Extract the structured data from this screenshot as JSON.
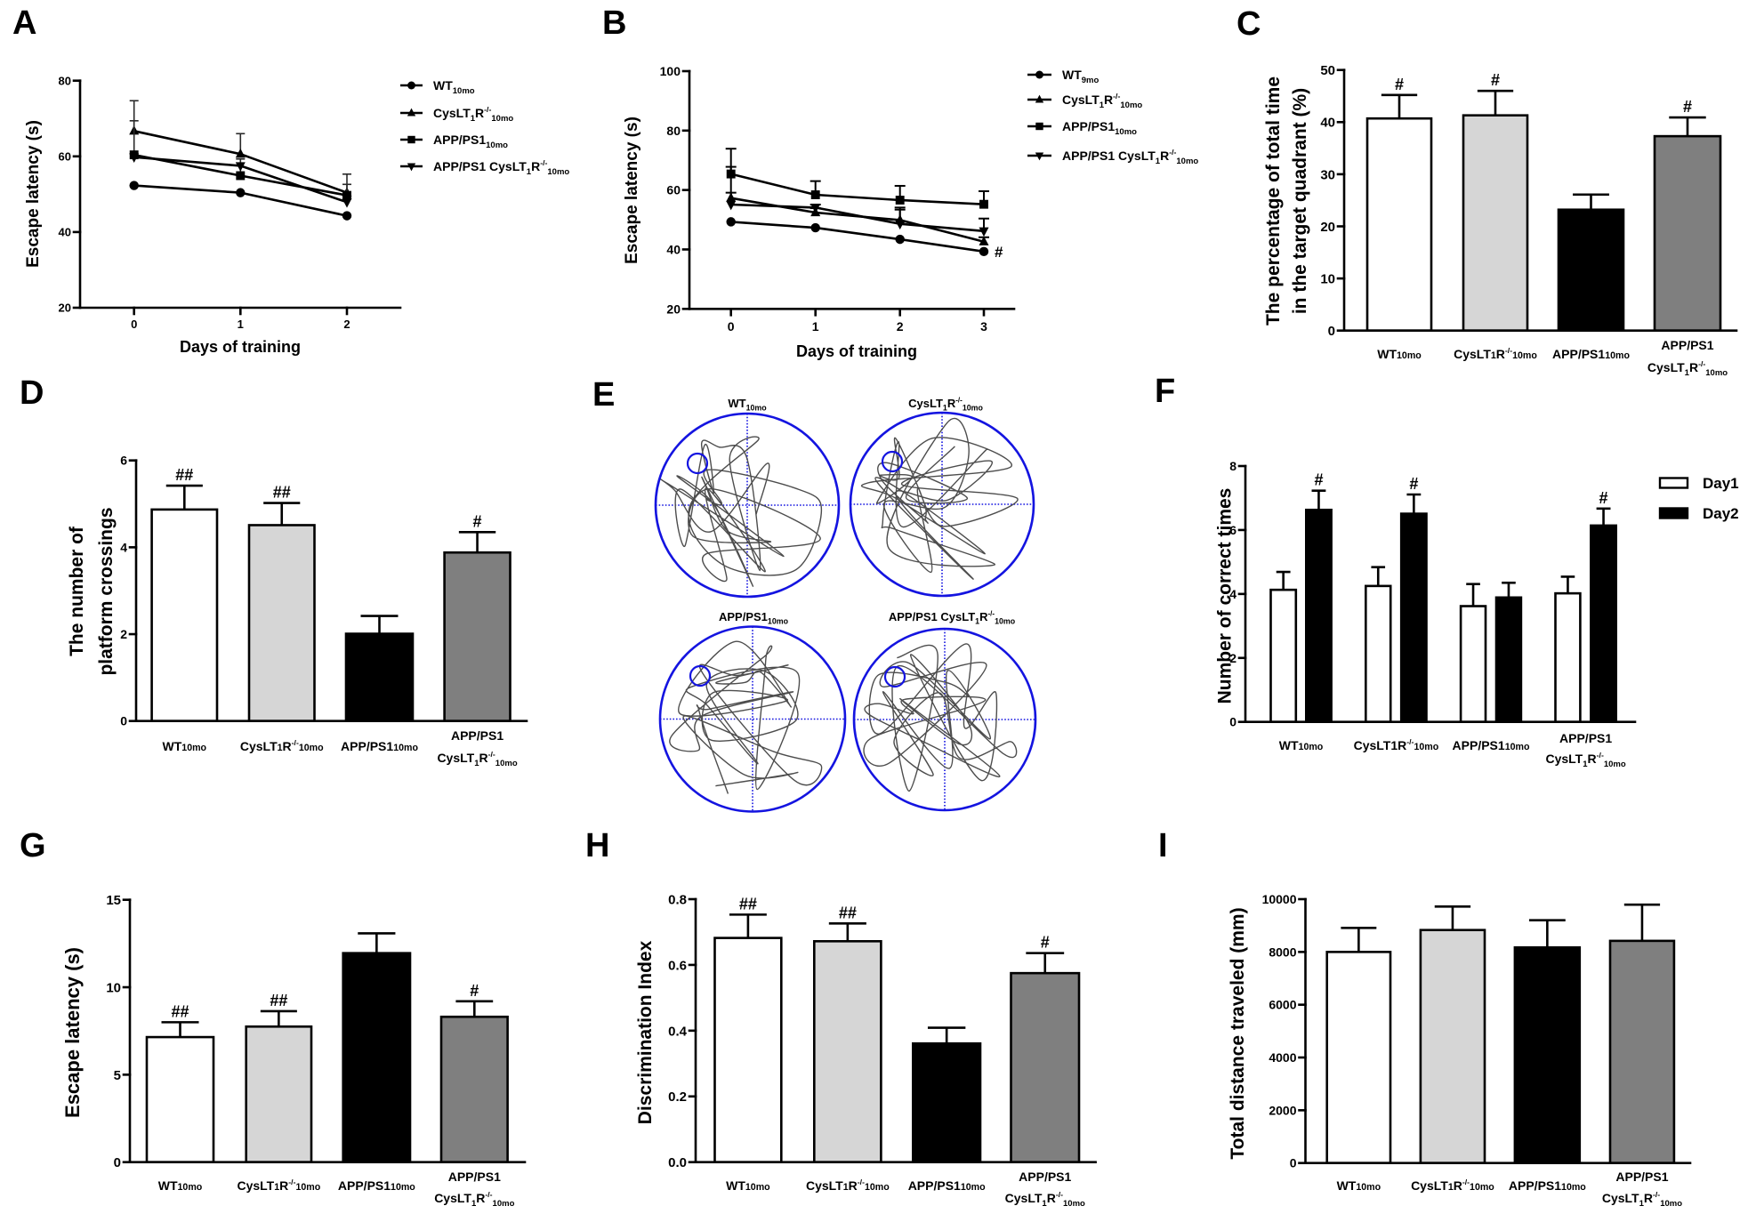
{
  "figure": {
    "panel_labels": [
      "A",
      "B",
      "C",
      "D",
      "E",
      "F",
      "G",
      "H",
      "I"
    ]
  },
  "styles": {
    "ink": "#000000",
    "bar_colors": [
      "#ffffff",
      "#d6d6d6",
      "#000000",
      "#7f7f7f"
    ],
    "pool_color": "#1414e0",
    "path_color": "#4d4d4d"
  },
  "rich_labels": {
    "leg_wt10": [
      [
        {
          "t": "WT"
        },
        {
          "t": "10mo",
          "f": "sub"
        }
      ]
    ],
    "leg_wt9": [
      [
        {
          "t": "WT"
        },
        {
          "t": "9mo",
          "f": "sub"
        }
      ]
    ],
    "leg_cys": [
      [
        {
          "t": "CysLT"
        },
        {
          "t": "1",
          "f": "sub"
        },
        {
          "t": "R"
        },
        {
          "t": "-/-",
          "f": "sup"
        },
        {
          "t": "10mo",
          "f": "sub"
        }
      ]
    ],
    "leg_app": [
      [
        {
          "t": "APP/PS1"
        },
        {
          "t": "10mo",
          "f": "sub"
        }
      ]
    ],
    "leg_appcys": [
      [
        {
          "t": "APP/PS1 CysLT"
        },
        {
          "t": "1",
          "f": "sub"
        },
        {
          "t": "R"
        },
        {
          "t": "-/-",
          "f": "sup"
        },
        {
          "t": "10mo",
          "f": "sub"
        }
      ]
    ],
    "bar_wt": [
      [
        {
          "t": "WT"
        },
        {
          "t": "10mo",
          "f": "sm"
        }
      ]
    ],
    "bar_cys": [
      [
        {
          "t": "CysLT"
        },
        {
          "t": "1",
          "f": "sm"
        },
        {
          "t": "R"
        },
        {
          "t": "-/-",
          "f": "sup"
        },
        {
          "t": "10mo",
          "f": "sm"
        }
      ]
    ],
    "bar_cys_f": [
      [
        {
          "t": "CysLT1R"
        },
        {
          "t": "-/-",
          "f": "sup"
        },
        {
          "t": "10mo",
          "f": "sm"
        }
      ]
    ],
    "bar_app": [
      [
        {
          "t": "APP/PS1"
        },
        {
          "t": "10mo",
          "f": "sm"
        }
      ]
    ],
    "bar_appcys": [
      [
        {
          "t": "APP/PS1"
        }
      ],
      [
        {
          "t": "CysLT"
        },
        {
          "t": "1",
          "f": "sub"
        },
        {
          "t": "R"
        },
        {
          "t": "-/-",
          "f": "sup"
        },
        {
          "t": "10mo",
          "f": "sub"
        }
      ]
    ]
  },
  "chart_data": [
    {
      "panel": "A",
      "type": "line",
      "title": "",
      "xlabel": "Days of training",
      "ylabel": "Escape latency (s)",
      "x": [
        0,
        1,
        2
      ],
      "xtick_labels": [
        "0",
        "1",
        "2"
      ],
      "ylim": [
        20,
        80
      ],
      "yticks": [
        20,
        40,
        60,
        80
      ],
      "ytick_labels": [
        "20",
        "40",
        "60",
        "80"
      ],
      "legend": "right",
      "error": "SEM",
      "series": [
        {
          "name": "WT10mo",
          "legend_key": "leg_wt10",
          "marker": "circle",
          "values": [
            52.3,
            50.4,
            44.3
          ],
          "sem": [
            0,
            0,
            0
          ]
        },
        {
          "name": "CysLT1R-/-10mo",
          "legend_key": "leg_cys",
          "marker": "triangle-up",
          "values": [
            66.7,
            60.6,
            50.4
          ],
          "sem": [
            8.0,
            5.4,
            4.9
          ]
        },
        {
          "name": "APP/PS110mo",
          "legend_key": "leg_app",
          "marker": "square",
          "values": [
            60.4,
            54.9,
            49.7
          ],
          "sem": [
            9.0,
            4.4,
            2.9
          ]
        },
        {
          "name": "APP/PS1 CysLT1R-/-10mo",
          "legend_key": "leg_appcys",
          "marker": "triangle-down",
          "values": [
            59.8,
            57.5,
            47.9
          ],
          "sem": [
            0,
            0,
            0
          ]
        }
      ],
      "annotations": []
    },
    {
      "panel": "B",
      "type": "line",
      "title": "",
      "xlabel": "Days of training",
      "ylabel": "Escape latency (s)",
      "x": [
        0,
        1,
        2,
        3
      ],
      "xtick_labels": [
        "0",
        "1",
        "2",
        "3"
      ],
      "ylim": [
        20,
        100
      ],
      "yticks": [
        20,
        40,
        60,
        80,
        100
      ],
      "ytick_labels": [
        "20",
        "40",
        "60",
        "80",
        "100"
      ],
      "legend": "right",
      "error": "SEM",
      "series": [
        {
          "name": "WT9mo",
          "legend_key": "leg_wt9",
          "marker": "circle",
          "values": [
            49.3,
            47.3,
            43.4,
            39.3
          ],
          "sem": [
            0,
            0,
            0,
            0
          ]
        },
        {
          "name": "CysLT1R-/-10mo",
          "legend_key": "leg_cys",
          "marker": "triangle-up",
          "values": [
            57.3,
            52.4,
            49.9,
            42.6
          ],
          "sem": [
            10.5,
            1.5,
            3.5,
            1.5
          ]
        },
        {
          "name": "APP/PS110mo",
          "legend_key": "leg_app",
          "marker": "square",
          "values": [
            65.4,
            58.4,
            56.6,
            55.2
          ],
          "sem": [
            8.5,
            4.6,
            4.8,
            4.4
          ]
        },
        {
          "name": "APP/PS1 CysLT1R-/-10mo",
          "legend_key": "leg_appcys",
          "marker": "triangle-down",
          "values": [
            55.1,
            54.1,
            48.6,
            46.2
          ],
          "sem": [
            4.0,
            1.0,
            5.5,
            4.2
          ]
        }
      ],
      "annotations": [
        {
          "series_index": 0,
          "x_index": 3,
          "text": "#"
        }
      ]
    },
    {
      "panel": "C",
      "type": "bar",
      "title": "",
      "xlabel": "",
      "ylabel": [
        "The percentage of total time",
        "in the target quadrant (%)"
      ],
      "categories": [
        "WT10mo",
        "CysLT1R-/-10mo",
        "APP/PS110mo",
        "APP/PS1 CysLT1R-/-10mo"
      ],
      "category_label_keys": [
        "bar_wt",
        "bar_cys",
        "bar_app",
        "bar_appcys"
      ],
      "values": [
        40.7,
        41.3,
        23.2,
        37.3
      ],
      "sem": [
        4.5,
        4.7,
        2.9,
        3.6
      ],
      "significance": [
        "#",
        "#",
        "",
        "#"
      ],
      "ylim": [
        0,
        50
      ],
      "yticks": [
        0,
        10,
        20,
        30,
        40,
        50
      ],
      "ytick_labels": [
        "0",
        "10",
        "20",
        "30",
        "40",
        "50"
      ]
    },
    {
      "panel": "D",
      "type": "bar",
      "title": "",
      "xlabel": "",
      "ylabel": [
        "The number of",
        "platform crossings"
      ],
      "categories": [
        "WT10mo",
        "CysLT1R-/-10mo",
        "APP/PS110mo",
        "APP/PS1 CysLT1R-/-10mo"
      ],
      "category_label_keys": [
        "bar_wt",
        "bar_cys",
        "bar_app",
        "bar_appcys"
      ],
      "values": [
        4.87,
        4.51,
        2.01,
        3.88
      ],
      "sem": [
        0.55,
        0.51,
        0.41,
        0.47
      ],
      "significance": [
        "##",
        "##",
        "",
        "#"
      ],
      "ylim": [
        0,
        6
      ],
      "yticks": [
        0,
        2,
        4,
        6
      ],
      "ytick_labels": [
        "0",
        "2",
        "4",
        "6"
      ]
    },
    {
      "panel": "F",
      "type": "bar",
      "title": "",
      "xlabel": "",
      "ylabel": "Number of correct times",
      "categories": [
        "WT10mo",
        "CysLT1R-/-10mo",
        "APP/PS110mo",
        "APP/PS1 CysLT1R-/-10mo"
      ],
      "category_label_keys": [
        "bar_wt",
        "bar_cys_f",
        "bar_app",
        "bar_appcys"
      ],
      "series": [
        {
          "name": "Day1",
          "color": "#ffffff",
          "values": [
            4.13,
            4.25,
            3.62,
            4.02
          ],
          "sem": [
            0.56,
            0.59,
            0.69,
            0.52
          ],
          "significance": [
            "",
            "",
            "",
            ""
          ]
        },
        {
          "name": "Day2",
          "color": "#000000",
          "values": [
            6.63,
            6.51,
            3.89,
            6.14
          ],
          "sem": [
            0.6,
            0.6,
            0.46,
            0.53
          ],
          "significance": [
            "#",
            "#",
            "",
            "#"
          ]
        }
      ],
      "ylim": [
        0,
        8
      ],
      "yticks": [
        0,
        2,
        4,
        6,
        8
      ],
      "ytick_labels": [
        "0",
        "2",
        "4",
        "6",
        "8"
      ],
      "legend": "top-right"
    },
    {
      "panel": "G",
      "type": "bar",
      "title": "",
      "xlabel": "",
      "ylabel": "Escape latency (s)",
      "categories": [
        "WT10mo",
        "CysLT1R-/-10mo",
        "APP/PS110mo",
        "APP/PS1 CysLT1R-/-10mo"
      ],
      "category_label_keys": [
        "bar_wt",
        "bar_cys",
        "bar_app",
        "bar_appcys"
      ],
      "values": [
        7.15,
        7.75,
        11.95,
        8.31
      ],
      "sem": [
        0.85,
        0.88,
        1.13,
        0.89
      ],
      "significance": [
        "##",
        "##",
        "",
        "#"
      ],
      "ylim": [
        0,
        15
      ],
      "yticks": [
        0,
        5,
        10,
        15
      ],
      "ytick_labels": [
        "0",
        "5",
        "10",
        "15"
      ]
    },
    {
      "panel": "H",
      "type": "bar",
      "title": "",
      "xlabel": "",
      "ylabel": "Discrimination Index",
      "categories": [
        "WT10mo",
        "CysLT1R-/-10mo",
        "APP/PS110mo",
        "APP/PS1 CysLT1R-/-10mo"
      ],
      "category_label_keys": [
        "bar_wt",
        "bar_cys",
        "bar_app",
        "bar_appcys"
      ],
      "values": [
        0.682,
        0.672,
        0.361,
        0.575
      ],
      "sem": [
        0.071,
        0.054,
        0.048,
        0.061
      ],
      "significance": [
        "##",
        "##",
        "",
        "#"
      ],
      "ylim": [
        0,
        0.8
      ],
      "yticks": [
        0,
        0.2,
        0.4,
        0.6,
        0.8
      ],
      "ytick_labels": [
        "0.0",
        "0.2",
        "0.4",
        "0.6",
        "0.8"
      ]
    },
    {
      "panel": "I",
      "type": "bar",
      "title": "",
      "xlabel": "",
      "ylabel": "Total distance traveled (mm)",
      "categories": [
        "WT10mo",
        "CysLT1R-/-10mo",
        "APP/PS110mo",
        "APP/PS1 CysLT1R-/-10mo"
      ],
      "category_label_keys": [
        "bar_wt",
        "bar_cys",
        "bar_app",
        "bar_appcys"
      ],
      "values": [
        8000,
        8830,
        8170,
        8420
      ],
      "sem": [
        910,
        890,
        1030,
        1370
      ],
      "significance": [
        "",
        "",
        "",
        ""
      ],
      "ylim": [
        0,
        10000
      ],
      "yticks": [
        0,
        2000,
        4000,
        6000,
        8000,
        10000
      ],
      "ytick_labels": [
        "0",
        "2000",
        "4000",
        "6000",
        "8000",
        "10000"
      ]
    }
  ],
  "trajectories": {
    "panel": "E",
    "type": "water-maze-swim-paths",
    "plots": [
      {
        "group": "WT10mo",
        "title_key": "leg_wt10",
        "platform_quadrant": "upper-left"
      },
      {
        "group": "CysLT1R-/-10mo",
        "title_key": "leg_cys",
        "platform_quadrant": "upper-left"
      },
      {
        "group": "APP/PS110mo",
        "title_key": "leg_app",
        "platform_quadrant": "upper-left"
      },
      {
        "group": "APP/PS1 CysLT1R-/-10mo",
        "title_key": "leg_appcys",
        "platform_quadrant": "upper-left"
      }
    ]
  }
}
